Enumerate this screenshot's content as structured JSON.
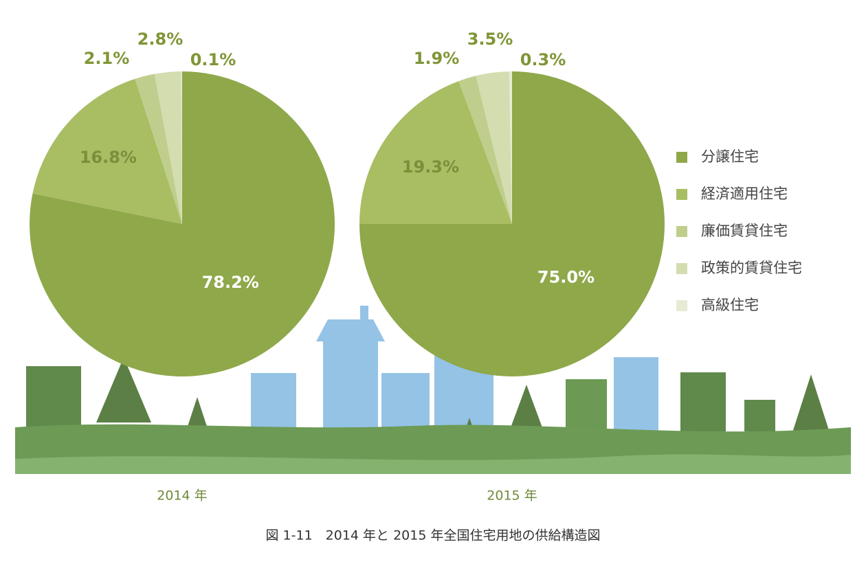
{
  "caption": "図 1-11　2014 年と 2015 年全国住宅用地の供給構造図",
  "legend": "bottom-right",
  "chart_data": [
    {
      "type": "pie",
      "title": "2014 年",
      "categories": [
        "分譲住宅",
        "経済適用住宅",
        "廉価賃貸住宅",
        "政策的賃貸住宅",
        "高級住宅"
      ],
      "values": [
        78.2,
        16.8,
        2.1,
        2.8,
        0.1
      ],
      "value_labels": [
        "78.2%",
        "16.8%",
        "2.1%",
        "2.8%",
        "0.1%"
      ],
      "colors": [
        "#8fa84a",
        "#a9bd63",
        "#bfce8c",
        "#d3ddb0",
        "#e6ecd3"
      ]
    },
    {
      "type": "pie",
      "title": "2015 年",
      "categories": [
        "分譲住宅",
        "経済適用住宅",
        "廉価賃貸住宅",
        "政策的賃貸住宅",
        "高級住宅"
      ],
      "values": [
        75.0,
        19.3,
        1.9,
        3.5,
        0.3
      ],
      "value_labels": [
        "75.0%",
        "19.3%",
        "1.9%",
        "3.5%",
        "0.3%"
      ],
      "colors": [
        "#8fa84a",
        "#a9bd63",
        "#bfce8c",
        "#d3ddb0",
        "#e6ecd3"
      ]
    }
  ]
}
